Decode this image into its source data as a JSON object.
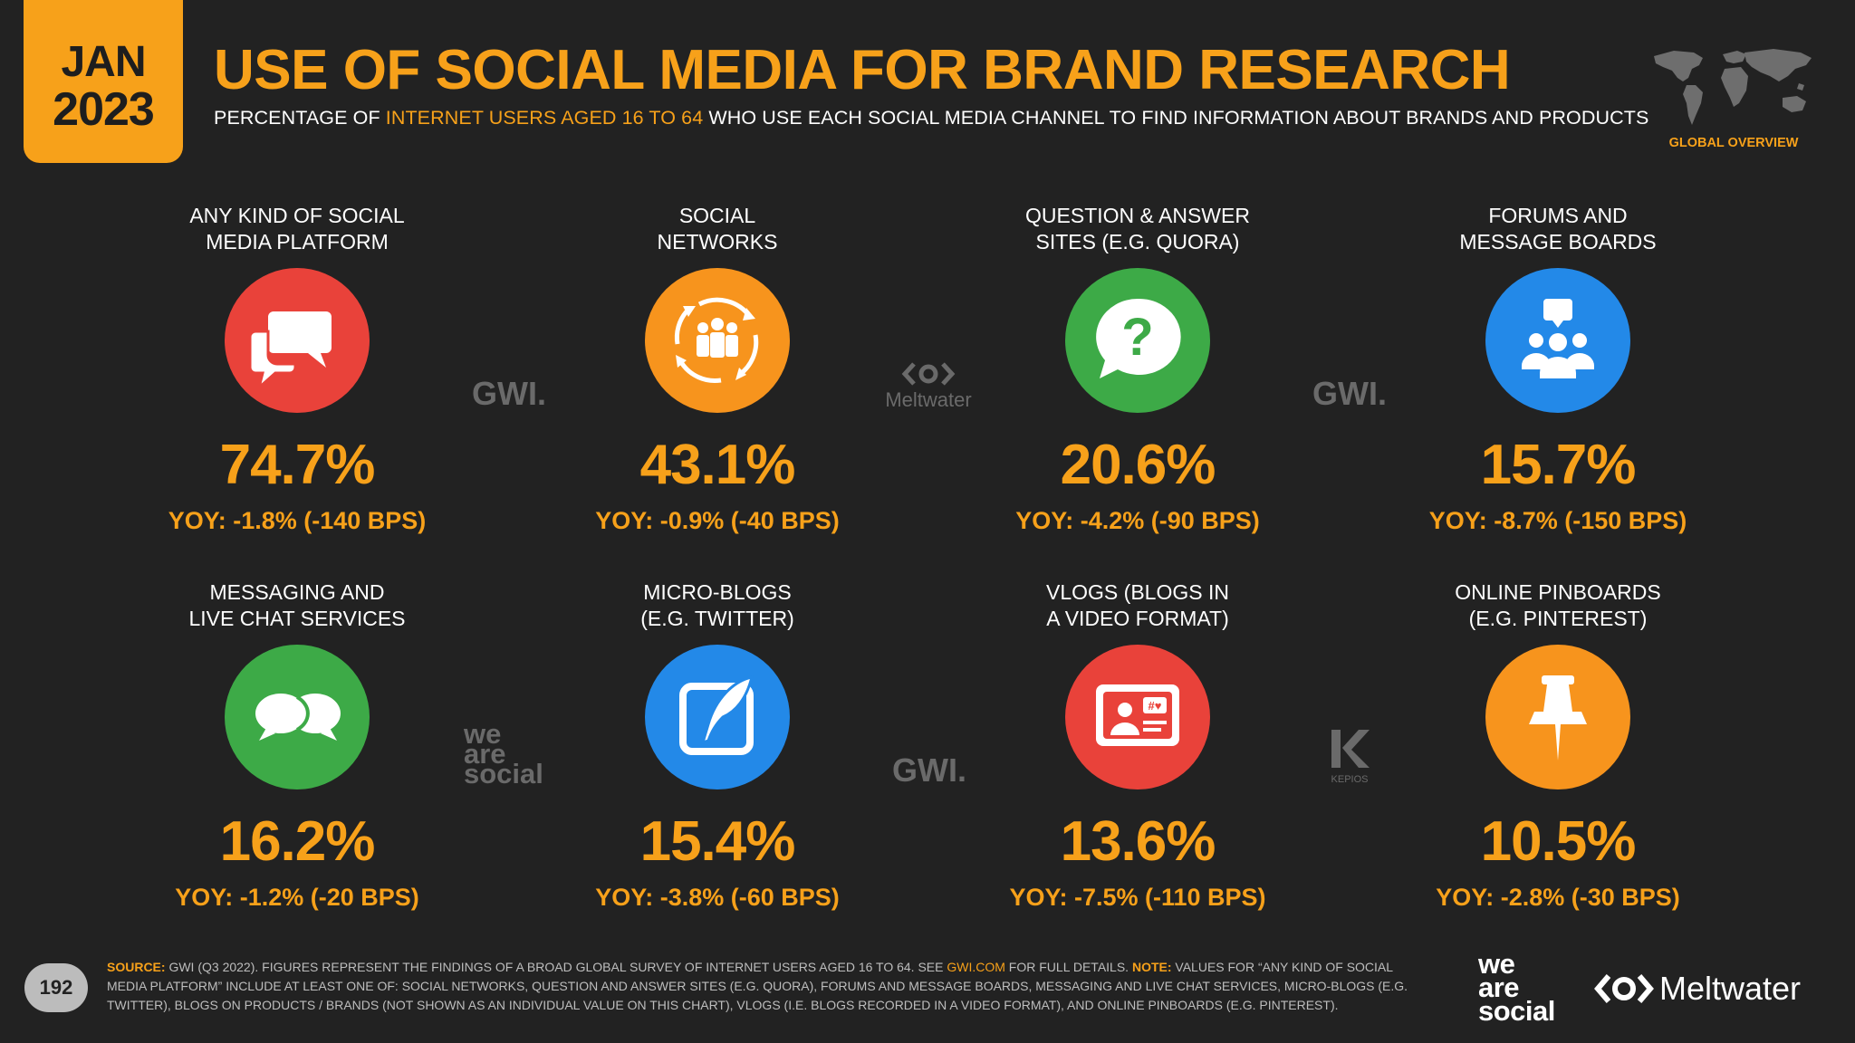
{
  "header": {
    "month": "JAN",
    "year": "2023",
    "title": "USE OF SOCIAL MEDIA FOR BRAND RESEARCH",
    "subtitle_pre": "PERCENTAGE OF ",
    "subtitle_hl": "INTERNET USERS AGED 16 TO 64",
    "subtitle_post": " WHO USE EACH SOCIAL MEDIA CHANNEL TO FIND INFORMATION ABOUT BRANDS AND PRODUCTS",
    "global_label": "GLOBAL OVERVIEW"
  },
  "items": [
    {
      "label_1": "ANY KIND OF SOCIAL",
      "label_2": "MEDIA PLATFORM",
      "value": "74.7%",
      "yoy": "YOY: -1.8% (-140 BPS)",
      "icon": "chat-bubbles-icon",
      "color": "#e9423a"
    },
    {
      "label_1": "SOCIAL",
      "label_2": "NETWORKS",
      "value": "43.1%",
      "yoy": "YOY: -0.9% (-40 BPS)",
      "icon": "people-network-icon",
      "color": "#f7941d"
    },
    {
      "label_1": "QUESTION & ANSWER",
      "label_2": "SITES (E.G. QUORA)",
      "value": "20.6%",
      "yoy": "YOY: -4.2% (-90 BPS)",
      "icon": "question-bubble-icon",
      "color": "#3daa47"
    },
    {
      "label_1": "FORUMS AND",
      "label_2": "MESSAGE BOARDS",
      "value": "15.7%",
      "yoy": "YOY: -8.7% (-150 BPS)",
      "icon": "forum-group-icon",
      "color": "#2389e8"
    },
    {
      "label_1": "MESSAGING AND",
      "label_2": "LIVE CHAT SERVICES",
      "value": "16.2%",
      "yoy": "YOY: -1.2% (-20 BPS)",
      "icon": "messaging-icon",
      "color": "#3daa47"
    },
    {
      "label_1": "MICRO-BLOGS",
      "label_2": "(E.G. TWITTER)",
      "value": "15.4%",
      "yoy": "YOY: -3.8% (-60 BPS)",
      "icon": "quill-icon",
      "color": "#2389e8"
    },
    {
      "label_1": "VLOGS (BLOGS IN",
      "label_2": "A VIDEO FORMAT)",
      "value": "13.6%",
      "yoy": "YOY: -7.5% (-110 BPS)",
      "icon": "vlog-icon",
      "color": "#e9423a"
    },
    {
      "label_1": "ONLINE PINBOARDS",
      "label_2": "(E.G. PINTEREST)",
      "value": "10.5%",
      "yoy": "YOY: -2.8% (-30 BPS)",
      "icon": "pushpin-icon",
      "color": "#f7941d"
    }
  ],
  "watermarks": {
    "gwi": "GWI.",
    "meltwater": "Meltwater",
    "was_1": "we",
    "was_2": "are",
    "was_3": "social",
    "kepios": "KEPIOS"
  },
  "footer": {
    "page": "192",
    "source_k": "SOURCE:",
    "source_1": " GWI (Q3 2022). FIGURES REPRESENT THE FINDINGS OF A BROAD GLOBAL SURVEY OF INTERNET USERS AGED 16 TO 64. SEE ",
    "source_link": "GWI.COM",
    "source_2": " FOR FULL DETAILS. ",
    "note_k": "NOTE:",
    "note": " VALUES FOR “ANY KIND OF SOCIAL MEDIA PLATFORM” INCLUDE AT LEAST ONE OF: SOCIAL NETWORKS, QUESTION AND ANSWER SITES (E.G. QUORA), FORUMS AND MESSAGE BOARDS, MESSAGING AND LIVE CHAT SERVICES, MICRO-BLOGS (E.G. TWITTER), BLOGS ON PRODUCTS / BRANDS (NOT SHOWN AS AN INDIVIDUAL VALUE ON THIS CHART), VLOGS (I.E. BLOGS RECORDED IN A VIDEO FORMAT), AND ONLINE PINBOARDS (E.G. PINTEREST).",
    "was_1": "we",
    "was_2": "are",
    "was_3": "social",
    "meltwater": "Meltwater"
  }
}
